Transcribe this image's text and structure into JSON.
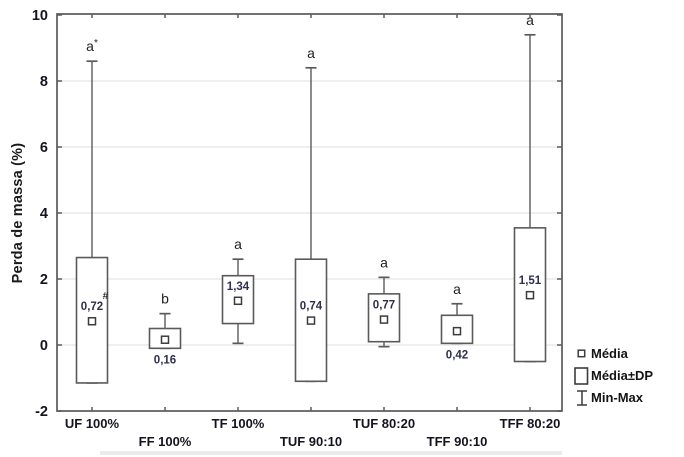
{
  "chart_data": {
    "type": "box",
    "title": "",
    "xlabel": "",
    "ylabel": "Perda de massa (%)",
    "ylim": [
      -2,
      10
    ],
    "yticks": [
      10,
      8,
      6,
      4,
      2,
      0,
      -2
    ],
    "grid": "horizontal light gray",
    "legend_position": "outside-bottom-right",
    "box_meaning": {
      "point": "Média",
      "box": "Média±DP",
      "whisker": "Min-Max"
    },
    "legend": [
      {
        "icon": "small-square",
        "label": "Média"
      },
      {
        "icon": "rectangle",
        "label": "Média±DP"
      },
      {
        "icon": "error-bar",
        "label": "Min-Max"
      }
    ],
    "groups": [
      {
        "label": "UF 100%",
        "label_row": 1,
        "mean": 0.72,
        "mean_label": "0,72",
        "sd_low": -1.15,
        "sd_high": 2.65,
        "min": -1.15,
        "max": 8.6,
        "sig": "a",
        "sig_sup": "*",
        "note": "#",
        "value_label_pos": "inside"
      },
      {
        "label": "FF 100%",
        "label_row": 2,
        "mean": 0.16,
        "mean_label": "0,16",
        "sd_low": -0.1,
        "sd_high": 0.5,
        "min": -0.1,
        "max": 0.95,
        "sig": "b",
        "sig_sup": "",
        "note": "",
        "value_label_pos": "below"
      },
      {
        "label": "TF 100%",
        "label_row": 1,
        "mean": 1.34,
        "mean_label": "1,34",
        "sd_low": 0.65,
        "sd_high": 2.1,
        "min": 0.05,
        "max": 2.6,
        "sig": "a",
        "sig_sup": "",
        "note": "",
        "value_label_pos": "inside"
      },
      {
        "label": "TUF 90:10",
        "label_row": 2,
        "mean": 0.74,
        "mean_label": "0,74",
        "sd_low": -1.1,
        "sd_high": 2.6,
        "min": -1.1,
        "max": 8.4,
        "sig": "a",
        "sig_sup": "",
        "note": "",
        "value_label_pos": "inside"
      },
      {
        "label": "TUF 80:20",
        "label_row": 1,
        "mean": 0.77,
        "mean_label": "0,77",
        "sd_low": 0.1,
        "sd_high": 1.55,
        "min": -0.05,
        "max": 2.05,
        "sig": "a",
        "sig_sup": "",
        "note": "",
        "value_label_pos": "inside"
      },
      {
        "label": "TFF 90:10",
        "label_row": 2,
        "mean": 0.42,
        "mean_label": "0,42",
        "sd_low": 0.05,
        "sd_high": 0.9,
        "min": 0.05,
        "max": 1.25,
        "sig": "a",
        "sig_sup": "",
        "note": "",
        "value_label_pos": "below"
      },
      {
        "label": "TFF 80:20",
        "label_row": 1,
        "mean": 1.51,
        "mean_label": "1,51",
        "sd_low": -0.5,
        "sd_high": 3.55,
        "min": -0.5,
        "max": 9.4,
        "sig": "a",
        "sig_sup": "",
        "note": "",
        "value_label_pos": "inside"
      }
    ],
    "colors": {
      "stroke": "#5a5a5a",
      "grid": "#eae4e2",
      "value_text": "#2e2e4e",
      "sig_text": "#222222",
      "axis_text": "#14141f",
      "background": "#ffffff"
    }
  }
}
